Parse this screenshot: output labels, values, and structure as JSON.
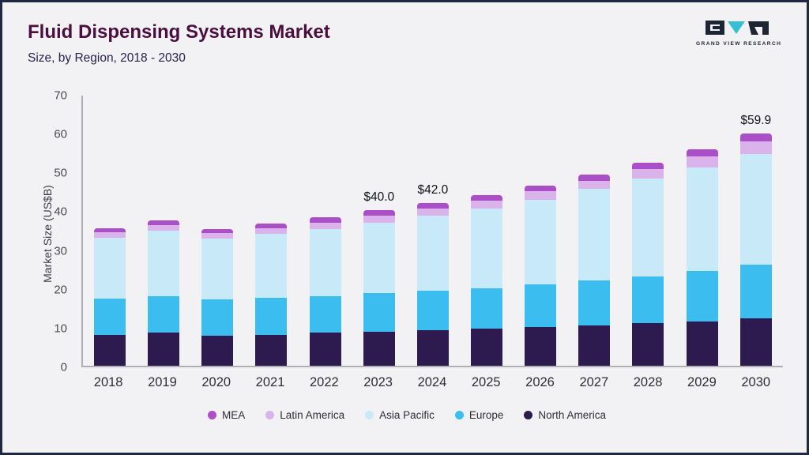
{
  "header": {
    "title": "Fluid Dispensing Systems Market",
    "subtitle": "Size, by Region, 2018 - 2030",
    "logo_text": "GRAND VIEW RESEARCH"
  },
  "colors": {
    "frame_border": "#1e2840",
    "background": "#f2f1f4",
    "title": "#4a0f3f",
    "logo_dark": "#1c2533",
    "logo_teal": "#35bfd4"
  },
  "chart_data": {
    "type": "bar",
    "stacked": true,
    "title": "Fluid Dispensing Systems Market",
    "subtitle": "Size, by Region, 2018 - 2030",
    "ylabel": "Market Size (US$B)",
    "xlabel": "",
    "ylim": [
      0,
      70
    ],
    "yticks": [
      0,
      10,
      20,
      30,
      40,
      50,
      60,
      70
    ],
    "grid": false,
    "legend_position": "bottom",
    "categories": [
      "2018",
      "2019",
      "2020",
      "2021",
      "2022",
      "2023",
      "2024",
      "2025",
      "2026",
      "2027",
      "2028",
      "2029",
      "2030"
    ],
    "series": [
      {
        "name": "North America",
        "color": "#2d1a4e",
        "values": [
          8.0,
          8.5,
          7.8,
          8.0,
          8.5,
          8.7,
          9.2,
          9.5,
          10.0,
          10.3,
          11.0,
          11.5,
          12.2
        ]
      },
      {
        "name": "Europe",
        "color": "#3bbdf0",
        "values": [
          9.2,
          9.5,
          9.2,
          9.5,
          9.5,
          10.0,
          10.1,
          10.5,
          11.0,
          11.7,
          12.0,
          13.0,
          13.8
        ]
      },
      {
        "name": "Asia Pacific",
        "color": "#c8eaf8",
        "values": [
          15.8,
          16.8,
          15.8,
          16.5,
          17.2,
          18.1,
          19.4,
          20.6,
          21.8,
          23.5,
          25.2,
          26.5,
          28.5
        ]
      },
      {
        "name": "Latin America",
        "color": "#d9b3ea",
        "values": [
          1.4,
          1.5,
          1.4,
          1.5,
          1.7,
          1.8,
          1.9,
          2.0,
          2.1,
          2.2,
          2.4,
          2.9,
          3.3
        ]
      },
      {
        "name": "MEA",
        "color": "#ab4fc8",
        "values": [
          1.1,
          1.2,
          1.0,
          1.2,
          1.3,
          1.4,
          1.4,
          1.4,
          1.5,
          1.6,
          1.7,
          1.9,
          2.1
        ]
      }
    ],
    "totals": [
      35.5,
      37.5,
      35.2,
      36.7,
      38.2,
      40.0,
      42.0,
      44.0,
      46.4,
      49.3,
      52.3,
      55.8,
      59.9
    ],
    "annotations": [
      {
        "category": "2023",
        "label": "$40.0"
      },
      {
        "category": "2024",
        "label": "$42.0"
      },
      {
        "category": "2030",
        "label": "$59.9"
      }
    ]
  }
}
